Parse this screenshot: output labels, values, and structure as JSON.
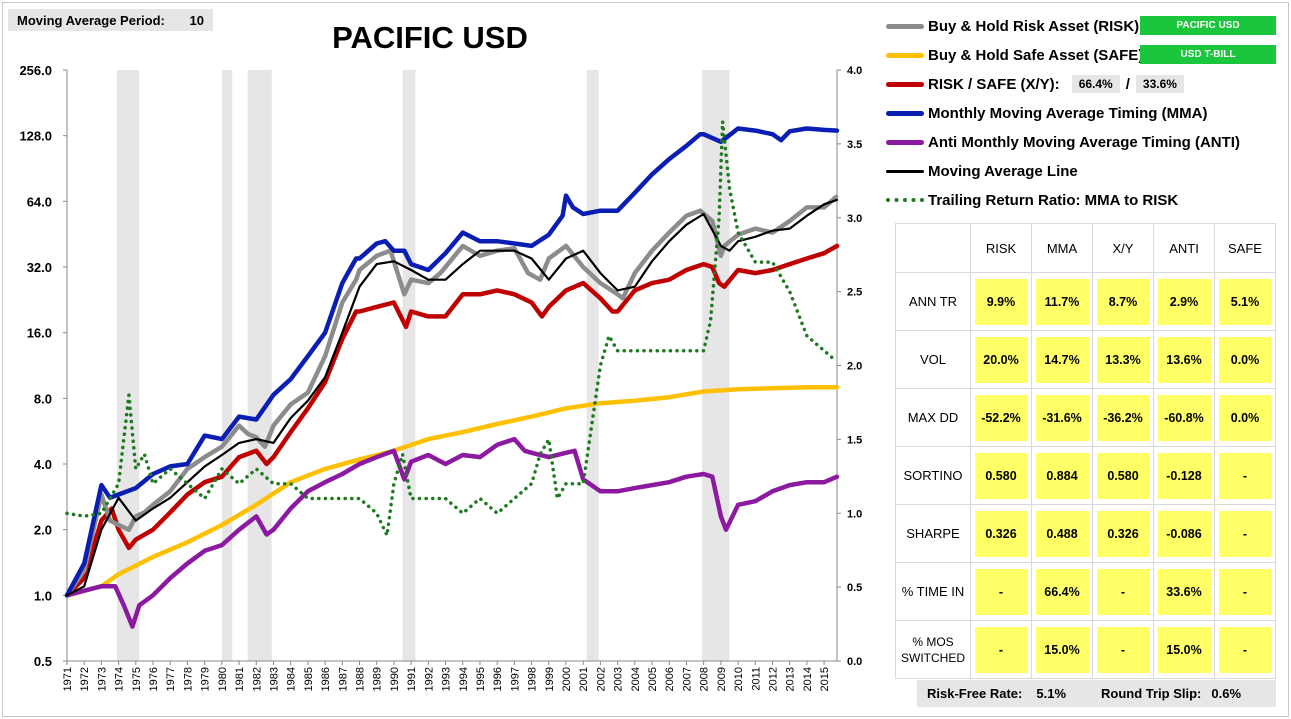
{
  "header": {
    "ma_label": "Moving Average Period:",
    "ma_value": "10",
    "title": "PACIFIC USD"
  },
  "legend": {
    "risk_label": "Buy & Hold Risk Asset (RISK):",
    "risk_asset": "PACIFIC USD",
    "safe_label": "Buy & Hold Safe Asset (SAFE):",
    "safe_asset": "USD T-BILL",
    "xy_label": "RISK / SAFE (X/Y):",
    "xy_risk_pct": "66.4%",
    "xy_sep": "/",
    "xy_safe_pct": "33.6%",
    "mma_label": "Monthly Moving Average Timing (MMA)",
    "anti_label": "Anti Monthly Moving Average Timing (ANTI)",
    "maline_label": "Moving Average Line",
    "ratio_label": "Trailing Return Ratio: MMA to RISK"
  },
  "colors": {
    "risk": "#8c8c8c",
    "safe": "#ffc000",
    "xy": "#c00000",
    "mma": "#0a1eb4",
    "anti": "#8c1aa0",
    "maline": "#000000",
    "ratio": "#1e7a1e",
    "badge": "#19c63c",
    "stat_cell": "#ffff66",
    "recession": "#e6e6e6"
  },
  "stats": {
    "columns": [
      "RISK",
      "MMA",
      "X/Y",
      "ANTI",
      "SAFE"
    ],
    "rows": [
      {
        "label": "ANN TR",
        "values": [
          "9.9%",
          "11.7%",
          "8.7%",
          "2.9%",
          "5.1%"
        ]
      },
      {
        "label": "VOL",
        "values": [
          "20.0%",
          "14.7%",
          "13.3%",
          "13.6%",
          "0.0%"
        ]
      },
      {
        "label": "MAX DD",
        "values": [
          "-52.2%",
          "-31.6%",
          "-36.2%",
          "-60.8%",
          "0.0%"
        ]
      },
      {
        "label": "SORTINO",
        "values": [
          "0.580",
          "0.884",
          "0.580",
          "-0.128",
          "-"
        ]
      },
      {
        "label": "SHARPE",
        "values": [
          "0.326",
          "0.488",
          "0.326",
          "-0.086",
          "-"
        ]
      },
      {
        "label": "% TIME IN",
        "values": [
          "-",
          "66.4%",
          "-",
          "33.6%",
          "-"
        ]
      },
      {
        "label": "% MOS SWITCHED",
        "values": [
          "-",
          "15.0%",
          "-",
          "15.0%",
          "-"
        ]
      }
    ]
  },
  "footer": {
    "rf_label": "Risk-Free Rate:",
    "rf_value": "5.1%",
    "slip_label": "Round Trip Slip:",
    "slip_value": "0.6%"
  },
  "chart_data": {
    "type": "line",
    "title": "PACIFIC USD",
    "y_scale": "log2",
    "ylim": [
      0.5,
      256
    ],
    "y_ticks": [
      "0.5",
      "1.0",
      "2.0",
      "4.0",
      "8.0",
      "16.0",
      "32.0",
      "64.0",
      "128.0",
      "256.0"
    ],
    "y2lim": [
      0.0,
      4.0
    ],
    "y2_ticks": [
      "0.0",
      "0.5",
      "1.0",
      "1.5",
      "2.0",
      "2.5",
      "3.0",
      "3.5",
      "4.0"
    ],
    "xlim": [
      1971,
      2015.75
    ],
    "x_ticks": [
      "1971",
      "1972",
      "1973",
      "1974",
      "1975",
      "1976",
      "1977",
      "1978",
      "1979",
      "1980",
      "1981",
      "1982",
      "1983",
      "1984",
      "1985",
      "1986",
      "1987",
      "1988",
      "1989",
      "1990",
      "1991",
      "1992",
      "1993",
      "1994",
      "1995",
      "1996",
      "1997",
      "1998",
      "1999",
      "2000",
      "2001",
      "2002",
      "2003",
      "2004",
      "2005",
      "2006",
      "2007",
      "2008",
      "2009",
      "2010",
      "2011",
      "2012",
      "2013",
      "2014",
      "2015"
    ],
    "recessions": [
      [
        1973.9,
        1975.2
      ],
      [
        1980.0,
        1980.6
      ],
      [
        1981.5,
        1982.9
      ],
      [
        1990.5,
        1991.25
      ],
      [
        2001.2,
        2001.9
      ],
      [
        2007.9,
        2009.5
      ]
    ],
    "grid": false,
    "legend_position": "right",
    "series": [
      {
        "name": "Buy & Hold Risk Asset (RISK)",
        "color_key": "risk",
        "axis": "left",
        "x": [
          1971,
          1972,
          1973,
          1973.5,
          1974,
          1974.6,
          1975,
          1975.5,
          1976,
          1977,
          1978,
          1979,
          1980,
          1981,
          1981.5,
          1982,
          1982.5,
          1983,
          1984,
          1985,
          1986,
          1987,
          1987.8,
          1988,
          1989,
          1989.8,
          1990,
          1990.6,
          1991,
          1992,
          1992.7,
          1993,
          1994,
          1995,
          1996,
          1997,
          1997.8,
          1998.5,
          1999,
          2000,
          2001,
          2002,
          2003,
          2003.3,
          2004,
          2005,
          2006,
          2007,
          2007.8,
          2008.5,
          2009,
          2009.2,
          2010,
          2011,
          2012,
          2013,
          2014,
          2015,
          2015.7
        ],
        "y": [
          1.0,
          1.3,
          2.9,
          2.2,
          2.1,
          2.0,
          2.3,
          2.4,
          2.6,
          3.0,
          3.8,
          4.3,
          4.8,
          6.0,
          5.5,
          5.3,
          4.8,
          6.0,
          7.5,
          8.5,
          12.5,
          22,
          28,
          31,
          36,
          38,
          34,
          24,
          28,
          27,
          30,
          32,
          40,
          36,
          38,
          39,
          30,
          28,
          35,
          40,
          32,
          27,
          24,
          23,
          30,
          38,
          46,
          55,
          58,
          52,
          36,
          40,
          45,
          48,
          46,
          52,
          60,
          60,
          67
        ]
      },
      {
        "name": "Buy & Hold Safe Asset (SAFE)",
        "color_key": "safe",
        "axis": "left",
        "x": [
          1971,
          1973,
          1974,
          1976,
          1978,
          1980,
          1982,
          1984,
          1986,
          1988,
          1990,
          1992,
          1994,
          1996,
          1998,
          2000,
          2002,
          2004,
          2006,
          2008,
          2010,
          2012,
          2014,
          2015.75
        ],
        "y": [
          1.0,
          1.1,
          1.25,
          1.5,
          1.75,
          2.1,
          2.6,
          3.3,
          3.8,
          4.2,
          4.6,
          5.2,
          5.6,
          6.1,
          6.6,
          7.2,
          7.6,
          7.8,
          8.1,
          8.6,
          8.8,
          8.9,
          9.0,
          9.0
        ]
      },
      {
        "name": "RISK / SAFE (X/Y)",
        "color_key": "xy",
        "axis": "left",
        "x": [
          1971,
          1972,
          1973,
          1973.6,
          1974,
          1974.6,
          1975,
          1976,
          1977,
          1978,
          1979,
          1980,
          1981,
          1982,
          1982.6,
          1983,
          1984,
          1985,
          1986,
          1987,
          1987.8,
          1988,
          1989,
          1990,
          1990.7,
          1991,
          1992,
          1993,
          1994,
          1995,
          1996,
          1997,
          1998,
          1998.6,
          1999,
          2000,
          2001,
          2002,
          2002.7,
          2003,
          2004,
          2005,
          2006,
          2007,
          2008,
          2008.5,
          2008.9,
          2009.2,
          2010,
          2011,
          2012,
          2013,
          2014,
          2015,
          2015.75
        ],
        "y": [
          1.0,
          1.2,
          2.2,
          2.5,
          2.0,
          1.65,
          1.8,
          2.0,
          2.4,
          2.9,
          3.3,
          3.5,
          4.3,
          4.6,
          4.0,
          4.3,
          5.6,
          7.2,
          9.5,
          15,
          20,
          20,
          21,
          22,
          17,
          20,
          19,
          19,
          24,
          24,
          25,
          24,
          22,
          19,
          21,
          25,
          27,
          23,
          20,
          20,
          25,
          27,
          28,
          31,
          33,
          32,
          27,
          26,
          31,
          30,
          31,
          33,
          35,
          37,
          40
        ]
      },
      {
        "name": "Monthly Moving Average Timing (MMA)",
        "color_key": "mma",
        "axis": "left",
        "x": [
          1971,
          1972,
          1973,
          1973.5,
          1974,
          1975,
          1976,
          1977,
          1978,
          1979,
          1980,
          1981,
          1982,
          1983,
          1984,
          1985,
          1986,
          1987,
          1987.8,
          1988,
          1989,
          1989.5,
          1990,
          1990.6,
          1991,
          1992,
          1993,
          1994,
          1995,
          1996,
          1997,
          1998,
          1999,
          1999.8,
          2000,
          2000.4,
          2001,
          2002,
          2003,
          2004,
          2005,
          2006,
          2007,
          2007.8,
          2008,
          2009,
          2010,
          2011,
          2012,
          2012.5,
          2013,
          2014,
          2015,
          2015.75
        ],
        "y": [
          1.0,
          1.4,
          3.2,
          2.8,
          2.9,
          3.1,
          3.6,
          3.9,
          4.0,
          5.4,
          5.2,
          6.6,
          6.4,
          8.3,
          9.8,
          12.5,
          16,
          27,
          35,
          35,
          41,
          42,
          38,
          38,
          33,
          31,
          37,
          46,
          42,
          42,
          41,
          40,
          45,
          55,
          68,
          60,
          56,
          58,
          58,
          70,
          85,
          100,
          115,
          130,
          130,
          120,
          138,
          135,
          130,
          122,
          134,
          138,
          136,
          135
        ]
      },
      {
        "name": "Anti Monthly Moving Average Timing (ANTI)",
        "color_key": "anti",
        "axis": "left",
        "x": [
          1971,
          1972,
          1973,
          1973.8,
          1974.3,
          1974.8,
          1975.2,
          1976,
          1977,
          1978,
          1979,
          1980,
          1981,
          1982,
          1982.6,
          1983,
          1984,
          1985,
          1986,
          1987,
          1988,
          1989,
          1990,
          1990.6,
          1991,
          1992,
          1993,
          1994,
          1995,
          1996,
          1997,
          1997.6,
          1998,
          1999,
          2000,
          2000.5,
          2001,
          2002,
          2003,
          2004,
          2005,
          2006,
          2007,
          2008,
          2008.5,
          2009,
          2009.3,
          2010,
          2011,
          2012,
          2013,
          2014,
          2015,
          2015.75
        ],
        "y": [
          1.0,
          1.05,
          1.1,
          1.1,
          0.9,
          0.72,
          0.9,
          1.0,
          1.2,
          1.4,
          1.6,
          1.7,
          2.0,
          2.3,
          1.9,
          2.0,
          2.5,
          3.0,
          3.3,
          3.6,
          4.0,
          4.3,
          4.6,
          3.4,
          4.1,
          4.4,
          4.0,
          4.4,
          4.3,
          4.9,
          5.2,
          4.6,
          4.5,
          4.3,
          4.5,
          4.6,
          3.4,
          3.0,
          3.0,
          3.1,
          3.2,
          3.3,
          3.5,
          3.6,
          3.5,
          2.3,
          2.0,
          2.6,
          2.7,
          3.0,
          3.2,
          3.3,
          3.3,
          3.5
        ]
      },
      {
        "name": "Moving Average Line",
        "color_key": "maline",
        "axis": "left",
        "x": [
          1971,
          1972,
          1973,
          1974,
          1975,
          1976,
          1977,
          1978,
          1979,
          1980,
          1981,
          1982,
          1983,
          1984,
          1985,
          1986,
          1987,
          1988,
          1989,
          1990,
          1991,
          1992,
          1993,
          1994,
          1995,
          1996,
          1997,
          1998,
          1999,
          2000,
          2001,
          2002,
          2003,
          2004,
          2005,
          2006,
          2007,
          2008,
          2009,
          2009.5,
          2010,
          2011,
          2012,
          2013,
          2014,
          2015,
          2015.75
        ],
        "y": [
          1.0,
          1.1,
          2.0,
          2.8,
          2.2,
          2.5,
          2.8,
          3.3,
          3.9,
          4.4,
          5.0,
          5.2,
          5.0,
          6.5,
          7.8,
          10,
          16,
          26,
          33,
          34,
          31,
          28,
          28,
          33,
          38,
          38,
          38,
          35,
          28,
          35,
          38,
          30,
          25,
          26,
          34,
          42,
          50,
          56,
          40,
          38,
          42,
          44,
          47,
          48,
          55,
          62,
          65
        ]
      },
      {
        "name": "Trailing Return Ratio: MMA to RISK",
        "color_key": "ratio",
        "axis": "right",
        "dotted": true,
        "x": [
          1971,
          1972,
          1973,
          1973.5,
          1974,
          1974.6,
          1975,
          1975.5,
          1976,
          1977,
          1978,
          1979,
          1980,
          1981,
          1982,
          1983,
          1984,
          1985,
          1986,
          1987,
          1988,
          1989,
          1989.6,
          1990,
          1990.5,
          1991,
          1992,
          1993,
          1994,
          1995,
          1996,
          1997,
          1998,
          1998.5,
          1999,
          1999.5,
          2000,
          2001,
          2001.5,
          2002,
          2002.5,
          2003,
          2004,
          2005,
          2006,
          2007,
          2008,
          2008.4,
          2008.9,
          2009.1,
          2009.5,
          2010,
          2011,
          2012,
          2013,
          2014,
          2015,
          2015.5
        ],
        "y": [
          1.0,
          0.98,
          1.0,
          1.1,
          1.2,
          1.8,
          1.3,
          1.4,
          1.2,
          1.3,
          1.2,
          1.1,
          1.3,
          1.2,
          1.3,
          1.2,
          1.2,
          1.1,
          1.1,
          1.1,
          1.1,
          1.0,
          0.85,
          1.2,
          1.4,
          1.1,
          1.1,
          1.1,
          1.0,
          1.1,
          1.0,
          1.1,
          1.2,
          1.4,
          1.5,
          1.1,
          1.2,
          1.2,
          1.6,
          2.0,
          2.2,
          2.1,
          2.1,
          2.1,
          2.1,
          2.1,
          2.1,
          2.3,
          3.0,
          3.65,
          3.2,
          2.9,
          2.7,
          2.7,
          2.5,
          2.2,
          2.1,
          2.05
        ]
      }
    ]
  }
}
